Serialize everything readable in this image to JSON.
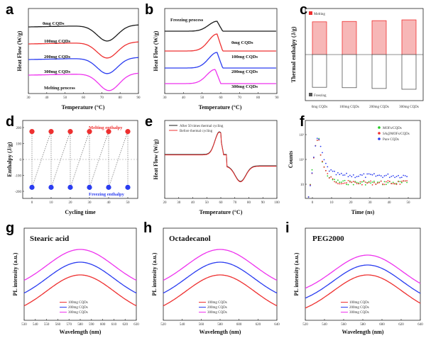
{
  "panels": {
    "a": {
      "label": "a",
      "xlabel": "Temperature (°C)",
      "ylabel": "Heat Flow (W/g)",
      "note": "Melting process",
      "xticks": [
        "30",
        "40",
        "50",
        "60",
        "70",
        "80",
        "90"
      ],
      "series": [
        "0mg CQDs",
        "100mg CQDs",
        "200mg CQDs",
        "300mg CQDs"
      ]
    },
    "b": {
      "label": "b",
      "xlabel": "Temperature (°C)",
      "ylabel": "Heat Flow (W/g)",
      "note": "Freezing process",
      "xticks": [
        "30",
        "40",
        "50",
        "60",
        "70",
        "80",
        "90"
      ],
      "series": [
        "0mg CQDs",
        "100mg CQDs",
        "200mg CQDs",
        "300mg CQDs"
      ]
    },
    "c": {
      "label": "c",
      "ylabel": "Thermal enthalpy (J/g)",
      "legend": [
        "Melting",
        "Freezing"
      ],
      "categories": [
        "0mg CQDs",
        "100mg CQDs",
        "200mg CQDs",
        "300mg CQDs"
      ]
    },
    "d": {
      "label": "d",
      "xlabel": "Cycling time",
      "ylabel": "Enthalpy (J/g)",
      "xticks": [
        "0",
        "10",
        "20",
        "30",
        "40",
        "50"
      ],
      "yticks": [
        "200",
        "100",
        "0",
        "-100",
        "-200"
      ],
      "top_note": "Melting enthalpy",
      "bottom_note": "Freezing enthalpy"
    },
    "e": {
      "label": "e",
      "xlabel": "Temperature (°C)",
      "ylabel": "Heat Flow (W/g)",
      "xticks": [
        "20",
        "30",
        "40",
        "50",
        "60",
        "70",
        "80",
        "90",
        "100"
      ],
      "legend": [
        "After 50 times thermal cycling",
        "Before thermal cycling"
      ]
    },
    "f": {
      "label": "f",
      "xlabel": "Time (ns)",
      "ylabel": "Counts",
      "xticks": [
        "0",
        "10",
        "20",
        "30",
        "40",
        "50"
      ],
      "yticks": [
        "10",
        "10²",
        "10³"
      ],
      "legend": [
        "MOFs/CQDs",
        "SA@MOFs/CQDs",
        "Pure CQDs"
      ]
    },
    "g": {
      "label": "g",
      "title": "Stearic acid",
      "xlabel": "Wavelength (nm)",
      "ylabel": "PL intensity (a.u.)",
      "xticks": [
        "530",
        "540",
        "550",
        "560",
        "570",
        "580",
        "590",
        "600",
        "610",
        "620",
        "630"
      ],
      "legend": [
        "100mg CQDs",
        "200mg CQDs",
        "300mg CQDs"
      ]
    },
    "h": {
      "label": "h",
      "title": "Octadecanol",
      "xlabel": "Wavelength (nm)",
      "ylabel": "PL intensity (a.u.)",
      "xticks": [
        "520",
        "540",
        "560",
        "580",
        "600",
        "620",
        "640"
      ],
      "legend": [
        "100mg CQDs",
        "200mg CQDs",
        "300mg CQDs"
      ]
    },
    "i": {
      "label": "i",
      "title": "PEG2000",
      "xlabel": "Wavelength (nm)",
      "ylabel": "PL intensity (a.u.)",
      "xticks": [
        "520",
        "540",
        "560",
        "580",
        "600",
        "620",
        "640"
      ],
      "legend": [
        "100mg CQDs",
        "200mg CQDs",
        "300mg CQDs"
      ]
    }
  },
  "colors": {
    "black": "#1a1a1a",
    "red": "#ee3030",
    "blue": "#2a3cf0",
    "magenta": "#ee33ee",
    "grey": "#555555"
  },
  "chart_data": [
    {
      "type": "line",
      "panel": "a",
      "xlim": [
        30,
        90
      ],
      "series": [
        {
          "name": "0mg CQDs",
          "peak_x": 73
        },
        {
          "name": "100mg CQDs",
          "peak_x": 73
        },
        {
          "name": "200mg CQDs",
          "peak_x": 73
        },
        {
          "name": "300mg CQDs",
          "peak_x": 74
        }
      ]
    },
    {
      "type": "line",
      "panel": "b",
      "xlim": [
        30,
        90
      ],
      "series": [
        {
          "name": "0mg CQDs",
          "peak_x": 58
        },
        {
          "name": "100mg CQDs",
          "peak_x": 58
        },
        {
          "name": "200mg CQDs",
          "peak_x": 58
        },
        {
          "name": "300mg CQDs",
          "peak_x": 57
        }
      ]
    },
    {
      "type": "bar",
      "panel": "c",
      "categories": [
        "0mg CQDs",
        "100mg CQDs",
        "200mg CQDs",
        "300mg CQDs"
      ],
      "series": [
        {
          "name": "Melting",
          "values": [
            168,
            170,
            174,
            178
          ]
        },
        {
          "name": "Freezing",
          "values": [
            -168,
            -170,
            -174,
            -178
          ]
        }
      ]
    },
    {
      "type": "scatter",
      "panel": "d",
      "xlim": [
        -5,
        55
      ],
      "ylim": [
        -250,
        250
      ],
      "series": [
        {
          "name": "Melting enthalpy",
          "x": [
            0,
            10,
            20,
            30,
            40,
            50
          ],
          "values": [
            175,
            175,
            175,
            175,
            175,
            175
          ]
        },
        {
          "name": "Freezing enthalpy",
          "x": [
            0,
            10,
            20,
            30,
            40,
            50
          ],
          "values": [
            -175,
            -175,
            -175,
            -175,
            -175,
            -175
          ]
        }
      ]
    },
    {
      "type": "line",
      "panel": "e",
      "xlim": [
        20,
        100
      ],
      "series": [
        {
          "name": "After 50 times thermal cycling",
          "peaks_x": [
            58,
            74
          ]
        },
        {
          "name": "Before thermal cycling",
          "peaks_x": [
            58,
            74
          ]
        }
      ]
    },
    {
      "type": "scatter",
      "panel": "f",
      "xlim": [
        -5,
        55
      ],
      "yscale": "log",
      "series": [
        {
          "name": "MOFs/CQDs",
          "peak_x": 3
        },
        {
          "name": "SA@MOFs/CQDs",
          "peak_x": 3
        },
        {
          "name": "Pure CQDs",
          "peak_x": 3
        }
      ]
    },
    {
      "type": "line",
      "panel": "g",
      "xlim": [
        530,
        630
      ],
      "series": [
        {
          "name": "100mg CQDs",
          "peak_x": 580
        },
        {
          "name": "200mg CQDs",
          "peak_x": 580
        },
        {
          "name": "300mg CQDs",
          "peak_x": 580
        }
      ]
    },
    {
      "type": "line",
      "panel": "h",
      "xlim": [
        520,
        640
      ],
      "series": [
        {
          "name": "100mg CQDs",
          "peak_x": 580
        },
        {
          "name": "200mg CQDs",
          "peak_x": 580
        },
        {
          "name": "300mg CQDs",
          "peak_x": 580
        }
      ]
    },
    {
      "type": "line",
      "panel": "i",
      "xlim": [
        520,
        640
      ],
      "series": [
        {
          "name": "100mg CQDs",
          "peak_x": 585
        },
        {
          "name": "200mg CQDs",
          "peak_x": 585
        },
        {
          "name": "300mg CQDs",
          "peak_x": 585
        }
      ]
    }
  ]
}
